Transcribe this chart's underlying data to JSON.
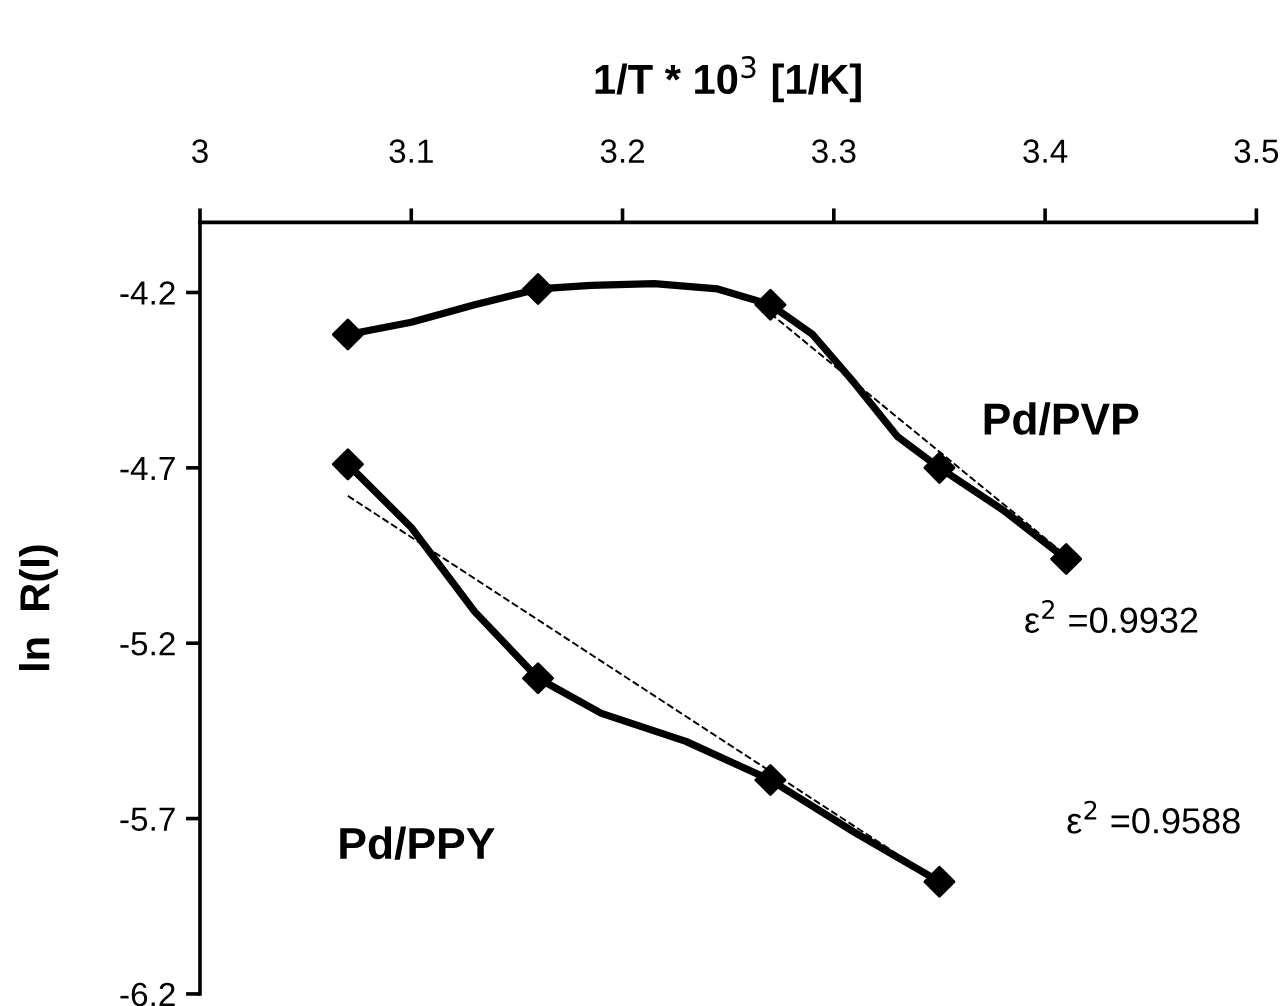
{
  "chart_data": {
    "type": "line",
    "xlabel": "1/T * 10$^{3}$ [1/K]",
    "ylabel": "ln  R(I)",
    "xlim": [
      3,
      3.5
    ],
    "xticks": [
      3,
      3.1,
      3.2,
      3.3,
      3.4,
      3.5
    ],
    "ylim": [
      -6.2,
      -4.0
    ],
    "yticks": [
      -4.2,
      -4.7,
      -5.2,
      -5.7,
      -6.2
    ],
    "grid": false,
    "legend": false,
    "marker": "none",
    "line_style": "solid",
    "series": [
      {
        "color": "#000000",
        "x": [
          3.07,
          3.1,
          3.13,
          3.16,
          3.185,
          3.215,
          3.245,
          3.27,
          3.29,
          3.31,
          3.33,
          3.35,
          3.38,
          3.41
        ],
        "values": [
          -4.32,
          -4.285,
          -4.235,
          -4.19,
          -4.18,
          -4.175,
          -4.19,
          -4.235,
          -4.32,
          -4.46,
          -4.61,
          -4.7,
          -4.82,
          -4.96
        ]
      },
      {
        "color": "#000000",
        "x": [
          3.07,
          3.1,
          3.13,
          3.16,
          3.19,
          3.23,
          3.27,
          3.31,
          3.35
        ],
        "values": [
          -4.69,
          -4.87,
          -5.11,
          -5.3,
          -5.4,
          -5.48,
          -5.59,
          -5.74,
          -5.88
        ]
      },
      {
        "type": "scatter",
        "marker": "diamond",
        "color": "#000000",
        "x": [
          3.07,
          3.16,
          3.27,
          3.35,
          3.41
        ],
        "values": [
          -4.32,
          -4.19,
          -4.235,
          -4.7,
          -4.96
        ]
      },
      {
        "type": "scatter",
        "marker": "diamond",
        "color": "#000000",
        "x": [
          3.07,
          3.16,
          3.27,
          3.35
        ],
        "values": [
          -4.69,
          -5.3,
          -5.59,
          -5.88
        ]
      },
      {
        "color": "#000000",
        "line_style": "dashed",
        "x": [
          3.27,
          3.41
        ],
        "values": [
          -4.26,
          -4.95
        ]
      },
      {
        "color": "#000000",
        "line_style": "dashed",
        "x": [
          3.07,
          3.35
        ],
        "values": [
          -4.78,
          -5.88
        ]
      }
    ],
    "annotations": [
      "Pd/PVP",
      "Pd/PPY",
      "ε$^{2}$ =0.9932",
      "ε$^{2}$ =0.9588"
    ]
  }
}
